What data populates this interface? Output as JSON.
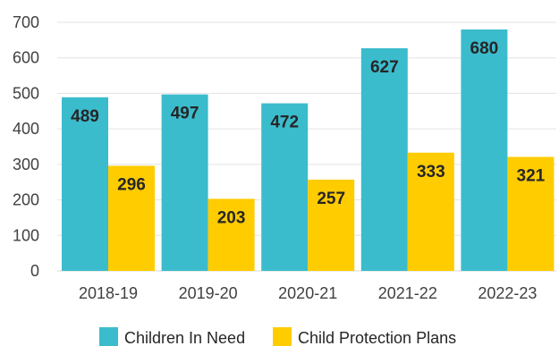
{
  "chart_data": {
    "type": "bar",
    "categories": [
      "2018-19",
      "2019-20",
      "2020-21",
      "2021-22",
      "2022-23"
    ],
    "series": [
      {
        "name": "Children In Need",
        "color": "#3bbccd",
        "values": [
          489,
          497,
          472,
          627,
          680
        ]
      },
      {
        "name": "Child Protection Plans",
        "color": "#ffcc00",
        "values": [
          296,
          203,
          257,
          333,
          321
        ]
      }
    ],
    "y_ticks": [
      "0",
      "100",
      "200",
      "300",
      "400",
      "500",
      "600",
      "700"
    ],
    "ylim": [
      0,
      700
    ],
    "grid": true,
    "legend_position": "bottom"
  }
}
